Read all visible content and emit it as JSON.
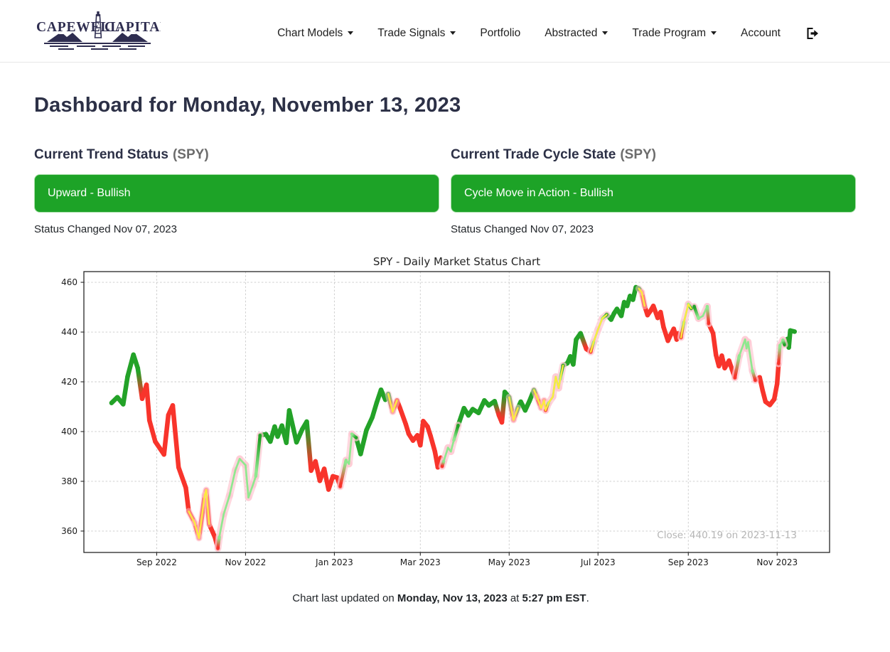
{
  "brand": {
    "left": "CAPEWELL",
    "right": "CAPITAL"
  },
  "nav": {
    "items": [
      {
        "label": "Chart Models",
        "dropdown": true
      },
      {
        "label": "Trade Signals",
        "dropdown": true
      },
      {
        "label": "Portfolio",
        "dropdown": false
      },
      {
        "label": "Abstracted",
        "dropdown": true
      },
      {
        "label": "Trade Program",
        "dropdown": true
      },
      {
        "label": "Account",
        "dropdown": false
      }
    ]
  },
  "page": {
    "title": "Dashboard for Monday, November 13, 2023"
  },
  "status_cards": [
    {
      "heading": "Current Trend Status",
      "symbol": "(SPY)",
      "value": "Upward - Bullish",
      "changed": "Status Changed Nov 07, 2023",
      "color": "#1da327"
    },
    {
      "heading": "Current Trade Cycle State",
      "symbol": "(SPY)",
      "value": "Cycle Move in Action - Bullish",
      "changed": "Status Changed Nov 07, 2023",
      "color": "#1da327"
    }
  ],
  "footer": {
    "prefix": "Chart last updated on ",
    "date": "Monday, Nov 13, 2023",
    "mid": " at ",
    "time": "5:27 pm EST",
    "suffix": "."
  },
  "chart_data": {
    "type": "line",
    "title": "SPY - Daily Market Status Chart",
    "annotation": "Close: 440.19 on 2023-11-13",
    "close": 440.19,
    "close_date": "2023-11-13",
    "xlabel": "",
    "ylabel": "",
    "grid": true,
    "x_epoch": "2022-08-01",
    "x_domain_days": [
      -19,
      493
    ],
    "y_domain": [
      351.4,
      464.3
    ],
    "y_ticks": [
      360,
      380,
      400,
      420,
      440,
      460
    ],
    "x_ticks": [
      {
        "day": 31,
        "label": "Sep 2022"
      },
      {
        "day": 92,
        "label": "Nov 2022"
      },
      {
        "day": 153,
        "label": "Jan 2023"
      },
      {
        "day": 212,
        "label": "Mar 2023"
      },
      {
        "day": 273,
        "label": "May 2023"
      },
      {
        "day": 334,
        "label": "Jul 2023"
      },
      {
        "day": 396,
        "label": "Sep 2023"
      },
      {
        "day": 457,
        "label": "Nov 2023"
      }
    ],
    "state_meaning": {
      "G": "bullish-trend",
      "R": "bearish-trend",
      "g": "transition",
      "gy": "transition-with-signal",
      "Ry": "bearish-with-signal",
      "Gy": "bullish-with-signal"
    },
    "colors": {
      "bull": "#23a228",
      "bear": "#f8342b",
      "transition": "#8fe88f",
      "signal": "#fdeb3d",
      "glow": "#ffc9d2",
      "grid": "#c9c9c9",
      "spine": "#262626",
      "tick_label": "#1a1a1a",
      "annotation": "#b5b5b5",
      "title": "#242424"
    },
    "points": [
      [
        0,
        411.5,
        "G"
      ],
      [
        4,
        413.8,
        "G"
      ],
      [
        8,
        411.0,
        "G"
      ],
      [
        11,
        422.1,
        "G"
      ],
      [
        15,
        430.9,
        "G"
      ],
      [
        18,
        425.5,
        "G"
      ],
      [
        21,
        413.2,
        "R"
      ],
      [
        24,
        418.8,
        "R"
      ],
      [
        26,
        404.5,
        "R"
      ],
      [
        30,
        396.0,
        "R"
      ],
      [
        36,
        390.8,
        "R"
      ],
      [
        39,
        406.6,
        "R"
      ],
      [
        42,
        410.5,
        "R"
      ],
      [
        46,
        385.6,
        "R"
      ],
      [
        51,
        377.4,
        "R"
      ],
      [
        53,
        367.9,
        "R"
      ],
      [
        57,
        363.4,
        "Ry"
      ],
      [
        60,
        357.2,
        "Ry"
      ],
      [
        64,
        374.5,
        "Ry"
      ],
      [
        65,
        376.5,
        "Ry"
      ],
      [
        67,
        362.8,
        "R"
      ],
      [
        71,
        357.5,
        "R"
      ],
      [
        73,
        353.0,
        "R"
      ],
      [
        74,
        357.6,
        "g"
      ],
      [
        77,
        366.8,
        "g"
      ],
      [
        81,
        374.3,
        "g"
      ],
      [
        85,
        384.5,
        "g"
      ],
      [
        88,
        389.0,
        "g"
      ],
      [
        92,
        386.5,
        "g"
      ],
      [
        94,
        373.5,
        "g"
      ],
      [
        97,
        378.5,
        "g"
      ],
      [
        99,
        382.0,
        "g"
      ],
      [
        102,
        398.5,
        "G"
      ],
      [
        106,
        398.9,
        "G"
      ],
      [
        109,
        396.0,
        "G"
      ],
      [
        112,
        402.0,
        "G"
      ],
      [
        114,
        398.0,
        "G"
      ],
      [
        117,
        402.4,
        "G"
      ],
      [
        120,
        395.5,
        "G"
      ],
      [
        122,
        408.5,
        "G"
      ],
      [
        127,
        395.7,
        "G"
      ],
      [
        131,
        401.0,
        "G"
      ],
      [
        134,
        404.0,
        "G"
      ],
      [
        137,
        384.3,
        "R"
      ],
      [
        140,
        388.0,
        "R"
      ],
      [
        143,
        380.2,
        "R"
      ],
      [
        146,
        385.0,
        "R"
      ],
      [
        149,
        376.7,
        "R"
      ],
      [
        152,
        382.0,
        "R"
      ],
      [
        155,
        381.5,
        "R"
      ],
      [
        157,
        377.9,
        "R"
      ],
      [
        161,
        388.5,
        "g"
      ],
      [
        163,
        387.0,
        "g"
      ],
      [
        165,
        399.0,
        "g"
      ],
      [
        168,
        397.5,
        "G"
      ],
      [
        171,
        391.0,
        "G"
      ],
      [
        175,
        400.6,
        "G"
      ],
      [
        179,
        405.7,
        "G"
      ],
      [
        182,
        411.5,
        "G"
      ],
      [
        185,
        416.8,
        "G"
      ],
      [
        188,
        412.8,
        "G"
      ],
      [
        190,
        415.1,
        "G"
      ],
      [
        193,
        408.0,
        "Ry"
      ],
      [
        196,
        412.5,
        "R"
      ],
      [
        198,
        409.5,
        "R"
      ],
      [
        202,
        403.0,
        "R"
      ],
      [
        204,
        399.1,
        "R"
      ],
      [
        207,
        396.4,
        "R"
      ],
      [
        210,
        398.5,
        "R"
      ],
      [
        212,
        394.5,
        "R"
      ],
      [
        214,
        404.2,
        "R"
      ],
      [
        217,
        402.0,
        "R"
      ],
      [
        219,
        398.3,
        "R"
      ],
      [
        222,
        392.0,
        "R"
      ],
      [
        224,
        385.6,
        "R"
      ],
      [
        226,
        389.5,
        "R"
      ],
      [
        227,
        386.0,
        "R"
      ],
      [
        228,
        388.0,
        "g"
      ],
      [
        231,
        393.5,
        "g"
      ],
      [
        233,
        392.0,
        "g"
      ],
      [
        235,
        396.5,
        "g"
      ],
      [
        238,
        402.5,
        "G"
      ],
      [
        242,
        409.4,
        "G"
      ],
      [
        245,
        406.5,
        "G"
      ],
      [
        248,
        409.0,
        "G"
      ],
      [
        252,
        407.5,
        "G"
      ],
      [
        256,
        412.5,
        "G"
      ],
      [
        259,
        410.5,
        "G"
      ],
      [
        263,
        412.2,
        "G"
      ],
      [
        266,
        406.5,
        "R"
      ],
      [
        268,
        403.7,
        "R"
      ],
      [
        270,
        415.9,
        "G"
      ],
      [
        273,
        413.8,
        "G"
      ],
      [
        276,
        404.7,
        "Ry"
      ],
      [
        279,
        409.5,
        "G"
      ],
      [
        281,
        412.0,
        "G"
      ],
      [
        284,
        408.5,
        "G"
      ],
      [
        287,
        412.3,
        "G"
      ],
      [
        290,
        416.7,
        "G"
      ],
      [
        292,
        414.0,
        "Ry"
      ],
      [
        295,
        409.5,
        "Ry"
      ],
      [
        297,
        412.5,
        "Ry"
      ],
      [
        298,
        408.5,
        "Ry"
      ],
      [
        300,
        411.5,
        "gy"
      ],
      [
        303,
        414.0,
        "gy"
      ],
      [
        305,
        422.0,
        "gy"
      ],
      [
        307,
        417.5,
        "gy"
      ],
      [
        308,
        421.0,
        "gy"
      ],
      [
        310,
        426.6,
        "G"
      ],
      [
        313,
        427.5,
        "G"
      ],
      [
        315,
        430.2,
        "G"
      ],
      [
        317,
        427.0,
        "G"
      ],
      [
        319,
        437.0,
        "G"
      ],
      [
        322,
        439.5,
        "G"
      ],
      [
        326,
        433.2,
        "R"
      ],
      [
        329,
        432.0,
        "R"
      ],
      [
        331,
        436.0,
        "gy"
      ],
      [
        334,
        441.0,
        "gy"
      ],
      [
        337,
        445.5,
        "gy"
      ],
      [
        340,
        447.0,
        "G"
      ],
      [
        343,
        445.0,
        "G"
      ],
      [
        345,
        447.5,
        "G"
      ],
      [
        347,
        449.3,
        "G"
      ],
      [
        350,
        446.5,
        "G"
      ],
      [
        352,
        452.0,
        "G"
      ],
      [
        354,
        450.5,
        "G"
      ],
      [
        356,
        454.5,
        "G"
      ],
      [
        358,
        453.0,
        "G"
      ],
      [
        360,
        458.0,
        "G"
      ],
      [
        362,
        457.5,
        "G"
      ],
      [
        364,
        456.0,
        "Ry"
      ],
      [
        366,
        450.5,
        "R"
      ],
      [
        368,
        446.8,
        "R"
      ],
      [
        370,
        448.5,
        "R"
      ],
      [
        372,
        450.5,
        "R"
      ],
      [
        375,
        445.7,
        "R"
      ],
      [
        377,
        448.0,
        "R"
      ],
      [
        379,
        442.0,
        "R"
      ],
      [
        382,
        436.5,
        "R"
      ],
      [
        384,
        439.0,
        "R"
      ],
      [
        386,
        441.3,
        "R"
      ],
      [
        388,
        437.0,
        "R"
      ],
      [
        389,
        439.5,
        "R"
      ],
      [
        391,
        437.8,
        "R"
      ],
      [
        393,
        444.0,
        "gy"
      ],
      [
        396,
        451.2,
        "gy"
      ],
      [
        398,
        449.5,
        "G"
      ],
      [
        400,
        450.3,
        "G"
      ],
      [
        403,
        445.5,
        "g"
      ],
      [
        406,
        446.5,
        "g"
      ],
      [
        409,
        450.3,
        "g"
      ],
      [
        410,
        443.4,
        "R"
      ],
      [
        413,
        439.5,
        "R"
      ],
      [
        415,
        430.8,
        "R"
      ],
      [
        417,
        426.3,
        "R"
      ],
      [
        419,
        430.5,
        "R"
      ],
      [
        421,
        425.5,
        "R"
      ],
      [
        424,
        428.5,
        "R"
      ],
      [
        426,
        425.0,
        "R"
      ],
      [
        428,
        421.6,
        "R"
      ],
      [
        431,
        430.5,
        "g"
      ],
      [
        435,
        437.0,
        "g"
      ],
      [
        436,
        433.4,
        "g"
      ],
      [
        437,
        436.0,
        "g"
      ],
      [
        440,
        424.5,
        "g"
      ],
      [
        442,
        420.6,
        "R"
      ],
      [
        445,
        421.8,
        "R"
      ],
      [
        447,
        416.5,
        "R"
      ],
      [
        449,
        412.0,
        "R"
      ],
      [
        452,
        410.7,
        "R"
      ],
      [
        455,
        413.0,
        "R"
      ],
      [
        457,
        419.2,
        "R"
      ],
      [
        458,
        427.3,
        "R"
      ],
      [
        459,
        434.7,
        "g"
      ],
      [
        461,
        436.8,
        "g"
      ],
      [
        462,
        434.9,
        "G"
      ],
      [
        464,
        437.2,
        "G"
      ],
      [
        465,
        433.8,
        "G"
      ],
      [
        466,
        440.6,
        "G"
      ],
      [
        469,
        440.19,
        "G"
      ]
    ]
  }
}
